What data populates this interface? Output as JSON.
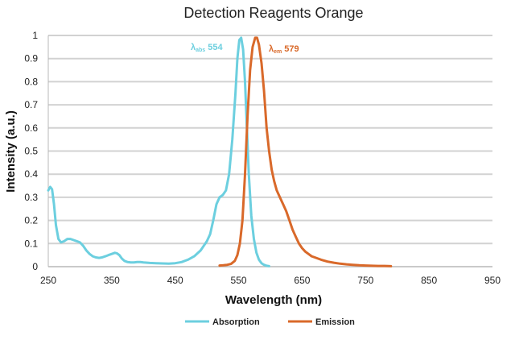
{
  "chart_data": {
    "type": "line",
    "title": "Detection Reagents Orange",
    "xlabel": "Wavelength (nm)",
    "ylabel": "Intensity (a.u.)",
    "xlim": [
      250,
      950
    ],
    "ylim": [
      0,
      1
    ],
    "xticks": [
      250,
      350,
      450,
      550,
      650,
      750,
      850,
      950
    ],
    "yticks": [
      0,
      0.1,
      0.2,
      0.3,
      0.4,
      0.5,
      0.6,
      0.7,
      0.8,
      0.9,
      1
    ],
    "ytick_labels": [
      "0",
      "0.1",
      "0.2",
      "0.3",
      "0.4",
      "0.5",
      "0.6",
      "0.7",
      "0.8",
      "0.9",
      "1"
    ],
    "grid": "horizontal",
    "legend": "bottom",
    "series": [
      {
        "name": "Absorption",
        "color": "#6ccfdf",
        "x": [
          250,
          253,
          256,
          259,
          262,
          266,
          270,
          275,
          280,
          285,
          290,
          295,
          300,
          305,
          310,
          315,
          320,
          325,
          330,
          335,
          340,
          345,
          350,
          355,
          358,
          362,
          366,
          370,
          375,
          380,
          385,
          390,
          395,
          400,
          410,
          420,
          430,
          440,
          450,
          460,
          470,
          480,
          490,
          500,
          505,
          510,
          515,
          520,
          525,
          530,
          535,
          540,
          545,
          548,
          551,
          554,
          557,
          560,
          563,
          566,
          570,
          574,
          578,
          582,
          586,
          590,
          594,
          598
        ],
        "y": [
          0.33,
          0.345,
          0.335,
          0.27,
          0.18,
          0.12,
          0.105,
          0.11,
          0.12,
          0.12,
          0.115,
          0.11,
          0.105,
          0.09,
          0.07,
          0.055,
          0.045,
          0.04,
          0.038,
          0.04,
          0.045,
          0.05,
          0.055,
          0.06,
          0.058,
          0.05,
          0.035,
          0.025,
          0.02,
          0.018,
          0.018,
          0.02,
          0.02,
          0.018,
          0.016,
          0.015,
          0.014,
          0.013,
          0.015,
          0.02,
          0.03,
          0.045,
          0.07,
          0.11,
          0.14,
          0.2,
          0.27,
          0.3,
          0.31,
          0.33,
          0.4,
          0.55,
          0.75,
          0.9,
          0.98,
          0.99,
          0.94,
          0.8,
          0.6,
          0.4,
          0.22,
          0.12,
          0.06,
          0.03,
          0.015,
          0.008,
          0.004,
          0.002
        ]
      },
      {
        "name": "Emission",
        "color": "#d9692a",
        "x": [
          520,
          526,
          532,
          538,
          544,
          548,
          552,
          556,
          560,
          564,
          568,
          572,
          576,
          579,
          582,
          586,
          590,
          594,
          598,
          602,
          606,
          610,
          615,
          620,
          625,
          630,
          635,
          640,
          645,
          650,
          655,
          660,
          665,
          670,
          680,
          690,
          700,
          710,
          720,
          730,
          740,
          750,
          760,
          770,
          780,
          790
        ],
        "y": [
          0.005,
          0.006,
          0.008,
          0.012,
          0.025,
          0.05,
          0.1,
          0.2,
          0.4,
          0.65,
          0.85,
          0.95,
          0.99,
          0.99,
          0.96,
          0.88,
          0.76,
          0.6,
          0.5,
          0.42,
          0.37,
          0.33,
          0.3,
          0.27,
          0.24,
          0.2,
          0.16,
          0.13,
          0.1,
          0.08,
          0.065,
          0.055,
          0.045,
          0.04,
          0.03,
          0.022,
          0.017,
          0.013,
          0.01,
          0.008,
          0.006,
          0.005,
          0.004,
          0.003,
          0.003,
          0.002
        ]
      }
    ],
    "annotations": [
      {
        "series": "Absorption",
        "symbol": "λ",
        "subscript": "abs",
        "value": "554",
        "color": "#6ccfdf"
      },
      {
        "series": "Emission",
        "symbol": "λ",
        "subscript": "em",
        "value": "579",
        "color": "#d9692a"
      }
    ]
  }
}
